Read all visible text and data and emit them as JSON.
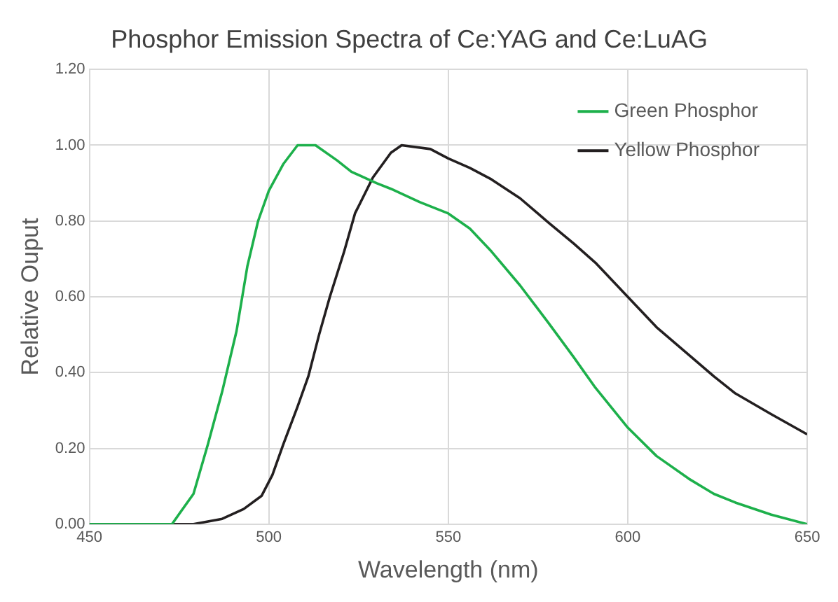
{
  "chart_data": {
    "type": "line",
    "title": "Phosphor Emission Spectra of Ce:YAG and Ce:LuAG",
    "xlabel": "Wavelength (nm)",
    "ylabel": "Relative Ouput",
    "xlim": [
      450,
      650
    ],
    "xticks": [
      450,
      500,
      550,
      600,
      650
    ],
    "ylim": [
      0,
      1.2
    ],
    "yticks": [
      {
        "value": 0,
        "label": "0.00"
      },
      {
        "value": 0.2,
        "label": "0.20"
      },
      {
        "value": 0.4,
        "label": "0.40"
      },
      {
        "value": 0.6,
        "label": "0.60"
      },
      {
        "value": 0.8,
        "label": "0.80"
      },
      {
        "value": 1.0,
        "label": "1.00"
      },
      {
        "value": 1.2,
        "label": "1.20"
      }
    ],
    "grid": true,
    "legend": "top right",
    "marker": "none",
    "line_style": "solid",
    "series": [
      {
        "name": "Green Phosphor",
        "color": "#1db04b",
        "x": [
          450,
          473,
          479,
          483,
          487,
          491,
          494,
          497,
          500,
          504,
          508,
          513,
          519,
          523,
          530,
          534,
          542,
          550,
          556,
          562,
          570,
          578,
          585,
          591,
          600,
          608,
          617,
          624,
          630,
          640,
          650
        ],
        "values": [
          0,
          0,
          0.08,
          0.21,
          0.35,
          0.51,
          0.68,
          0.8,
          0.88,
          0.95,
          1.0,
          1.0,
          0.96,
          0.93,
          0.9,
          0.885,
          0.85,
          0.82,
          0.78,
          0.72,
          0.63,
          0.53,
          0.44,
          0.36,
          0.255,
          0.18,
          0.12,
          0.08,
          0.057,
          0.025,
          0
        ]
      },
      {
        "name": "Yellow Phosphor",
        "color": "#231f20",
        "x": [
          450,
          479,
          487,
          493,
          498,
          501,
          504,
          508,
          511,
          514,
          517,
          521,
          524,
          529,
          534,
          537,
          545,
          550,
          556,
          562,
          570,
          578,
          585,
          591,
          600,
          608,
          617,
          624,
          630,
          640,
          650
        ],
        "values": [
          0,
          0,
          0.014,
          0.04,
          0.075,
          0.13,
          0.21,
          0.31,
          0.39,
          0.5,
          0.6,
          0.72,
          0.82,
          0.915,
          0.98,
          1.0,
          0.99,
          0.965,
          0.94,
          0.91,
          0.86,
          0.795,
          0.74,
          0.69,
          0.6,
          0.52,
          0.447,
          0.39,
          0.345,
          0.29,
          0.237
        ]
      }
    ]
  }
}
